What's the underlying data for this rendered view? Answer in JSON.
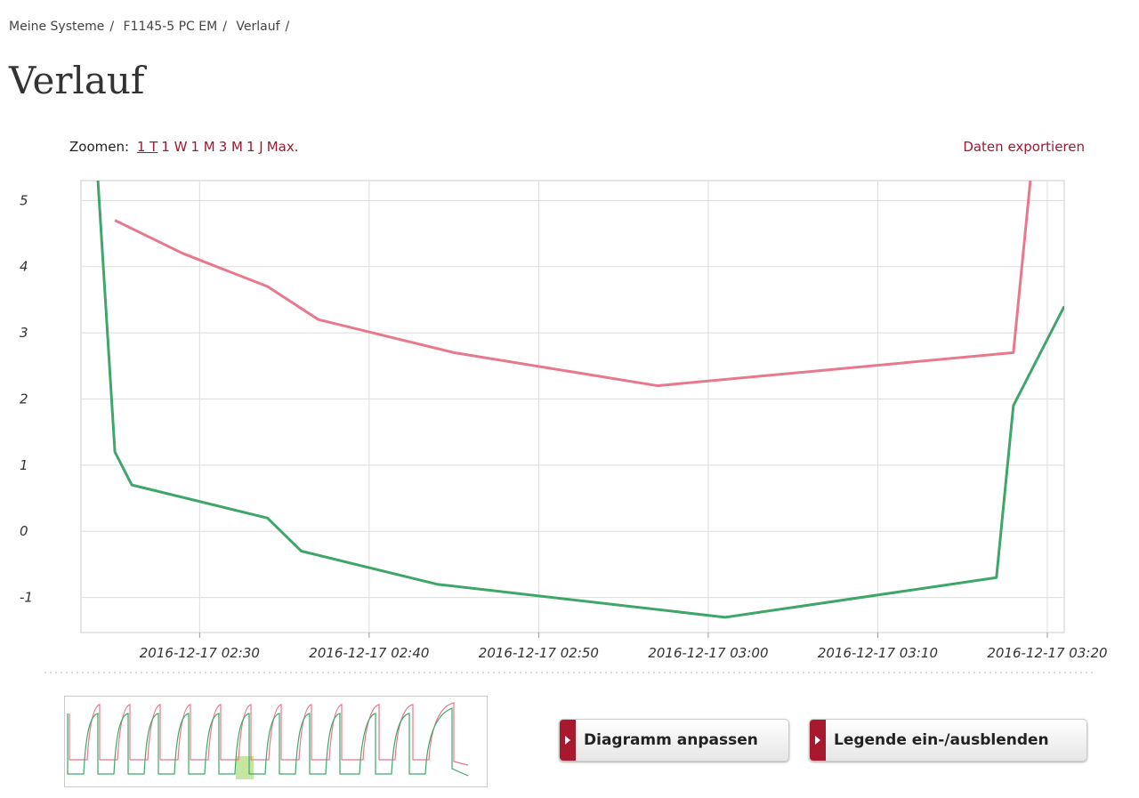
{
  "breadcrumb": [
    "Meine Systeme",
    "F1145-5 PC EM",
    "Verlauf"
  ],
  "separator": "/",
  "title": "Verlauf",
  "zoom": {
    "label": "Zoomen:",
    "options": [
      "1 T",
      "1 W",
      "1 M",
      "3 M",
      "1 J",
      "Max."
    ]
  },
  "export": "Daten exportieren",
  "chart_data": {
    "type": "line",
    "xlim": [
      "2016-12-17 02:23",
      "2016-12-17 03:21"
    ],
    "xticks": [
      "2016-12-17 02:30",
      "2016-12-17 02:40",
      "2016-12-17 02:50",
      "2016-12-17 03:00",
      "2016-12-17 03:10",
      "2016-12-17 03:20"
    ],
    "ylim": [
      -1.53,
      5.3
    ],
    "yticks": [
      -1,
      0,
      1,
      2,
      3,
      4,
      5
    ],
    "grid": true,
    "series": [
      {
        "color": "#e8788c",
        "x": [
          "2016-12-17 02:25",
          "2016-12-17 02:29",
          "2016-12-17 02:34",
          "2016-12-17 02:37",
          "2016-12-17 02:45",
          "2016-12-17 02:57",
          "2016-12-17 03:18",
          "2016-12-17 03:19"
        ],
        "values": [
          4.7,
          4.2,
          3.7,
          3.2,
          2.7,
          2.2,
          2.7,
          5.3
        ]
      },
      {
        "color": "#3fa66a",
        "x": [
          "2016-12-17 02:24",
          "2016-12-17 02:25",
          "2016-12-17 02:26",
          "2016-12-17 02:34",
          "2016-12-17 02:36",
          "2016-12-17 02:44",
          "2016-12-17 03:01",
          "2016-12-17 03:17",
          "2016-12-17 03:18",
          "2016-12-17 03:19",
          "2016-12-17 03:21"
        ],
        "values": [
          5.3,
          1.2,
          0.7,
          0.2,
          -0.3,
          -0.8,
          -1.3,
          -0.7,
          1.9,
          2.4,
          3.4
        ]
      }
    ]
  },
  "buttons": [
    "Diagramm anpassen",
    "Legende ein-/ausblenden"
  ]
}
